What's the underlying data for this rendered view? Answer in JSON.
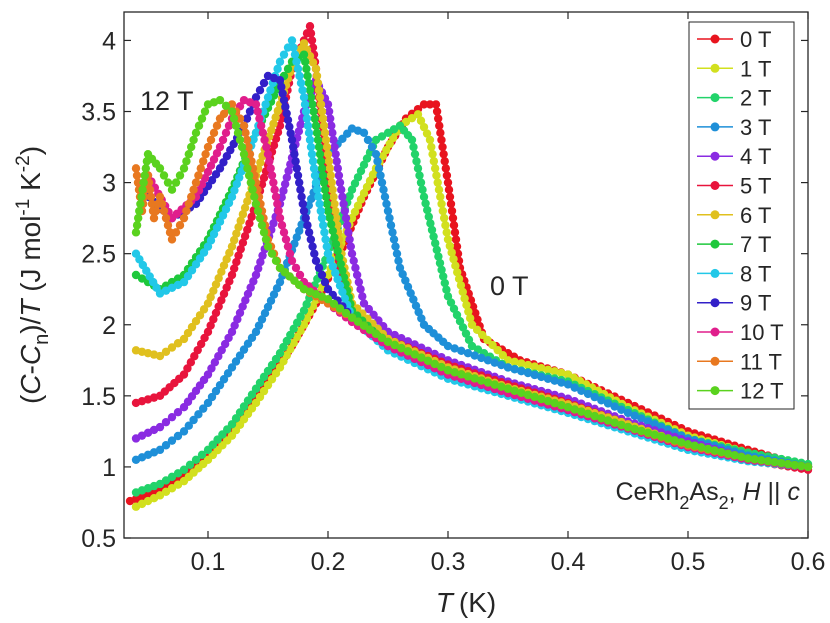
{
  "chart_data": {
    "type": "line",
    "title": "",
    "xlabel": "T (K)",
    "xlabel_italic": "T",
    "xlabel_unit": "(K)",
    "ylabel_parts": {
      "open": "(",
      "C": "C",
      "dash": "-",
      "Cn": "C",
      "n": "n",
      "close": ")/",
      "T": "T",
      "units_a": " (J mol",
      "exp1": "-1",
      "units_b": " K",
      "exp2": "-2",
      "units_c": ")"
    },
    "xlim": [
      0.03,
      0.6
    ],
    "ylim": [
      0.5,
      4.2
    ],
    "xticks": [
      "0.1",
      "0.2",
      "0.3",
      "0.4",
      "0.5",
      "0.6"
    ],
    "xtick_values": [
      0.1,
      0.2,
      0.3,
      0.4,
      0.5,
      0.6
    ],
    "yticks": [
      "0.5",
      "1",
      "1.5",
      "2",
      "2.5",
      "3",
      "3.5",
      "4"
    ],
    "ytick_values": [
      0.5,
      1,
      1.5,
      2,
      2.5,
      3,
      3.5,
      4
    ],
    "annotations": {
      "label_12T": "12 T",
      "label_0T": "0 T",
      "sample": "CeRh",
      "sub1": "2",
      "as": "As",
      "sub2": "2",
      "comma": ", ",
      "H": "H",
      "parallel": " || ",
      "c": "c"
    },
    "legend_position": "top-right",
    "series": [
      {
        "name": "0 T",
        "color": "#e8141e",
        "x": [
          0.035,
          0.05,
          0.07,
          0.09,
          0.11,
          0.13,
          0.15,
          0.17,
          0.19,
          0.21,
          0.23,
          0.25,
          0.265,
          0.28,
          0.29,
          0.3,
          0.31,
          0.33,
          0.36,
          0.4,
          0.45,
          0.5,
          0.55,
          0.6
        ],
        "y": [
          0.76,
          0.8,
          0.88,
          1.0,
          1.15,
          1.35,
          1.6,
          1.85,
          2.15,
          2.5,
          2.9,
          3.25,
          3.45,
          3.55,
          3.55,
          3.0,
          2.4,
          1.9,
          1.75,
          1.65,
          1.45,
          1.25,
          1.12,
          1.0
        ]
      },
      {
        "name": "1 T",
        "color": "#d2e01e",
        "x": [
          0.04,
          0.06,
          0.08,
          0.1,
          0.12,
          0.14,
          0.16,
          0.18,
          0.2,
          0.22,
          0.24,
          0.26,
          0.275,
          0.285,
          0.3,
          0.32,
          0.35,
          0.4,
          0.45,
          0.5,
          0.55,
          0.6
        ],
        "y": [
          0.72,
          0.8,
          0.9,
          1.05,
          1.22,
          1.45,
          1.7,
          2.0,
          2.35,
          2.75,
          3.1,
          3.4,
          3.48,
          3.3,
          2.6,
          2.0,
          1.75,
          1.65,
          1.42,
          1.22,
          1.1,
          1.0
        ]
      },
      {
        "name": "2 T",
        "color": "#22d36a",
        "x": [
          0.04,
          0.06,
          0.08,
          0.1,
          0.12,
          0.14,
          0.16,
          0.18,
          0.2,
          0.22,
          0.24,
          0.26,
          0.27,
          0.28,
          0.3,
          0.32,
          0.35,
          0.4,
          0.45,
          0.5,
          0.55,
          0.6
        ],
        "y": [
          0.82,
          0.88,
          0.98,
          1.12,
          1.3,
          1.55,
          1.8,
          2.1,
          2.5,
          2.95,
          3.3,
          3.4,
          3.3,
          2.9,
          2.2,
          1.85,
          1.7,
          1.6,
          1.4,
          1.2,
          1.1,
          1.02
        ]
      },
      {
        "name": "3 T",
        "color": "#1e8fd8",
        "x": [
          0.04,
          0.06,
          0.08,
          0.1,
          0.12,
          0.14,
          0.16,
          0.18,
          0.2,
          0.22,
          0.23,
          0.24,
          0.25,
          0.26,
          0.28,
          0.3,
          0.35,
          0.4,
          0.45,
          0.5,
          0.55,
          0.6
        ],
        "y": [
          1.05,
          1.12,
          1.25,
          1.45,
          1.7,
          1.95,
          2.3,
          2.75,
          3.2,
          3.38,
          3.35,
          3.2,
          2.8,
          2.4,
          2.0,
          1.85,
          1.7,
          1.58,
          1.38,
          1.2,
          1.08,
          1.0
        ]
      },
      {
        "name": "4 T",
        "color": "#8a2be2",
        "x": [
          0.04,
          0.06,
          0.08,
          0.1,
          0.12,
          0.14,
          0.16,
          0.18,
          0.19,
          0.2,
          0.21,
          0.22,
          0.23,
          0.25,
          0.3,
          0.35,
          0.4,
          0.45,
          0.5,
          0.55,
          0.6
        ],
        "y": [
          1.2,
          1.28,
          1.42,
          1.65,
          1.95,
          2.35,
          2.85,
          3.5,
          3.72,
          3.55,
          3.0,
          2.5,
          2.15,
          1.95,
          1.75,
          1.6,
          1.48,
          1.32,
          1.18,
          1.06,
          1.0
        ]
      },
      {
        "name": "5 T",
        "color": "#e8143c",
        "x": [
          0.04,
          0.06,
          0.08,
          0.1,
          0.12,
          0.14,
          0.16,
          0.17,
          0.18,
          0.185,
          0.19,
          0.2,
          0.21,
          0.22,
          0.25,
          0.3,
          0.35,
          0.4,
          0.45,
          0.5,
          0.55,
          0.6
        ],
        "y": [
          1.45,
          1.5,
          1.65,
          1.95,
          2.35,
          2.85,
          3.4,
          3.8,
          4.0,
          4.1,
          3.8,
          3.0,
          2.4,
          2.1,
          1.9,
          1.72,
          1.58,
          1.45,
          1.3,
          1.15,
          1.05,
          0.98
        ]
      },
      {
        "name": "6 T",
        "color": "#e0c01e",
        "x": [
          0.04,
          0.06,
          0.08,
          0.1,
          0.12,
          0.14,
          0.16,
          0.17,
          0.18,
          0.19,
          0.2,
          0.21,
          0.22,
          0.25,
          0.3,
          0.35,
          0.4,
          0.45,
          0.5,
          0.55,
          0.6
        ],
        "y": [
          1.82,
          1.78,
          1.9,
          2.15,
          2.55,
          3.05,
          3.55,
          3.82,
          3.98,
          3.8,
          3.2,
          2.55,
          2.15,
          1.9,
          1.7,
          1.56,
          1.44,
          1.3,
          1.15,
          1.05,
          1.0
        ]
      },
      {
        "name": "7 T",
        "color": "#1ec83c",
        "x": [
          0.04,
          0.06,
          0.08,
          0.1,
          0.12,
          0.14,
          0.16,
          0.17,
          0.18,
          0.19,
          0.2,
          0.22,
          0.25,
          0.3,
          0.35,
          0.4,
          0.45,
          0.5,
          0.55,
          0.6
        ],
        "y": [
          2.35,
          2.25,
          2.35,
          2.6,
          2.95,
          3.35,
          3.7,
          3.85,
          3.9,
          3.4,
          2.8,
          2.1,
          1.85,
          1.65,
          1.52,
          1.4,
          1.28,
          1.15,
          1.05,
          1.0
        ]
      },
      {
        "name": "8 T",
        "color": "#22c8e8",
        "x": [
          0.04,
          0.06,
          0.08,
          0.1,
          0.12,
          0.14,
          0.15,
          0.16,
          0.17,
          0.18,
          0.19,
          0.2,
          0.22,
          0.25,
          0.3,
          0.35,
          0.4,
          0.45,
          0.5,
          0.55,
          0.6
        ],
        "y": [
          2.5,
          2.22,
          2.3,
          2.55,
          2.9,
          3.35,
          3.6,
          3.85,
          4.0,
          3.6,
          3.0,
          2.5,
          2.05,
          1.82,
          1.62,
          1.5,
          1.38,
          1.25,
          1.12,
          1.04,
          1.0
        ]
      },
      {
        "name": "9 T",
        "color": "#3220c8",
        "x": [
          0.05,
          0.07,
          0.09,
          0.11,
          0.13,
          0.14,
          0.15,
          0.16,
          0.17,
          0.18,
          0.19,
          0.2,
          0.22,
          0.25,
          0.3,
          0.35,
          0.4,
          0.45,
          0.5,
          0.55,
          0.6
        ],
        "y": [
          2.9,
          2.75,
          2.85,
          3.1,
          3.4,
          3.6,
          3.75,
          3.72,
          3.3,
          2.8,
          2.45,
          2.25,
          2.05,
          1.85,
          1.65,
          1.52,
          1.4,
          1.27,
          1.14,
          1.05,
          1.0
        ]
      },
      {
        "name": "10 T",
        "color": "#e01e8c",
        "x": [
          0.05,
          0.07,
          0.09,
          0.11,
          0.12,
          0.13,
          0.14,
          0.15,
          0.16,
          0.17,
          0.18,
          0.2,
          0.22,
          0.25,
          0.3,
          0.35,
          0.4,
          0.45,
          0.5,
          0.55,
          0.6
        ],
        "y": [
          3.05,
          2.75,
          2.9,
          3.25,
          3.45,
          3.58,
          3.55,
          3.2,
          2.75,
          2.45,
          2.3,
          2.15,
          2.02,
          1.85,
          1.65,
          1.52,
          1.4,
          1.27,
          1.14,
          1.05,
          1.0
        ]
      },
      {
        "name": "11 T",
        "color": "#e87820",
        "x": [
          0.04,
          0.045,
          0.05,
          0.055,
          0.06,
          0.07,
          0.08,
          0.09,
          0.1,
          0.11,
          0.12,
          0.13,
          0.14,
          0.15,
          0.16,
          0.18,
          0.2,
          0.22,
          0.25,
          0.3,
          0.35,
          0.4,
          0.45,
          0.5,
          0.55,
          0.6
        ],
        "y": [
          3.1,
          2.8,
          3.05,
          2.75,
          2.9,
          2.6,
          2.75,
          3.0,
          3.25,
          3.45,
          3.55,
          3.4,
          3.0,
          2.6,
          2.4,
          2.25,
          2.15,
          2.05,
          1.88,
          1.68,
          1.55,
          1.42,
          1.28,
          1.15,
          1.06,
          1.0
        ]
      },
      {
        "name": "12 T",
        "color": "#5ad21e",
        "x": [
          0.04,
          0.05,
          0.06,
          0.07,
          0.08,
          0.09,
          0.1,
          0.11,
          0.12,
          0.13,
          0.14,
          0.15,
          0.16,
          0.18,
          0.2,
          0.22,
          0.25,
          0.3,
          0.35,
          0.4,
          0.45,
          0.5,
          0.55,
          0.6
        ],
        "y": [
          2.65,
          3.2,
          3.1,
          2.95,
          3.1,
          3.35,
          3.55,
          3.58,
          3.5,
          3.2,
          2.85,
          2.55,
          2.4,
          2.25,
          2.18,
          2.05,
          1.88,
          1.68,
          1.55,
          1.42,
          1.28,
          1.16,
          1.06,
          1.0
        ]
      }
    ]
  }
}
